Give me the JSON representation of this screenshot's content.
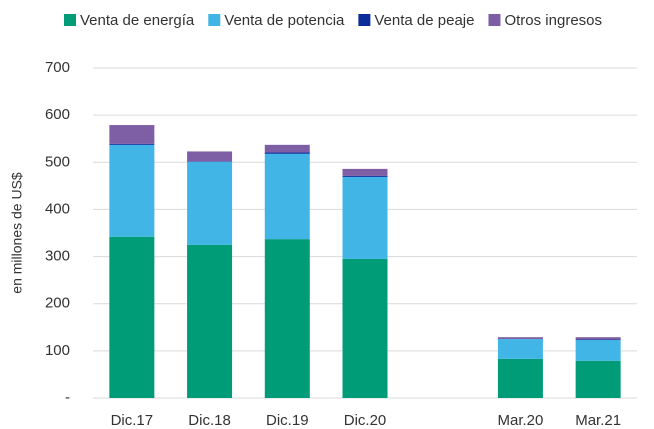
{
  "chart_data": {
    "type": "stacked_bar",
    "y_label": "en millones de US$",
    "categories": [
      "Dic.17",
      "Dic.18",
      "Dic.19",
      "Dic.20",
      null,
      "Mar.20",
      "Mar.21"
    ],
    "series": [
      {
        "name": "Venta de energía",
        "color": "#009b77",
        "values": [
          342,
          325,
          337,
          295,
          null,
          83,
          79
        ]
      },
      {
        "name": "Venta de potencia",
        "color": "#41b6e6",
        "values": [
          195,
          176,
          181,
          174,
          null,
          42,
          44
        ]
      },
      {
        "name": "Venta de peaje",
        "color": "#0b2d9c",
        "values": [
          2,
          1,
          3,
          2,
          null,
          0,
          1
        ]
      },
      {
        "name": "Otros ingresos",
        "color": "#7e5fa6",
        "values": [
          40,
          21,
          16,
          15,
          null,
          4,
          5
        ]
      }
    ],
    "ylim": [
      0,
      700
    ],
    "yticks": [
      {
        "value": 0,
        "label": "-"
      },
      100,
      200,
      300,
      400,
      500,
      600,
      700
    ],
    "grid": true
  }
}
